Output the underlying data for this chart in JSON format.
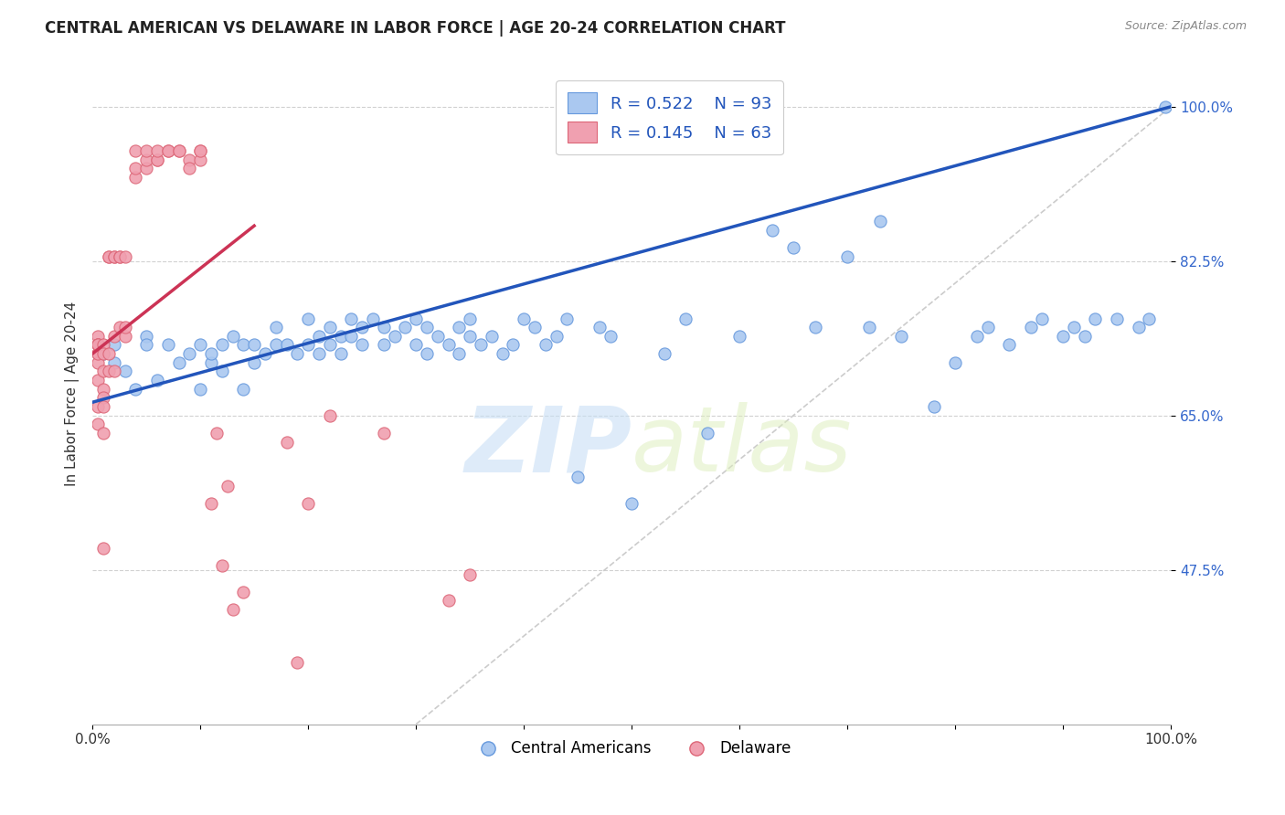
{
  "title": "CENTRAL AMERICAN VS DELAWARE IN LABOR FORCE | AGE 20-24 CORRELATION CHART",
  "source": "Source: ZipAtlas.com",
  "ylabel": "In Labor Force | Age 20-24",
  "ytick_labels": [
    "100.0%",
    "82.5%",
    "65.0%",
    "47.5%"
  ],
  "ytick_values": [
    1.0,
    0.825,
    0.65,
    0.475
  ],
  "xlim": [
    0.0,
    1.0
  ],
  "ylim": [
    0.3,
    1.05
  ],
  "watermark_zip": "ZIP",
  "watermark_atlas": "atlas",
  "legend_blue_R": "R = 0.522",
  "legend_blue_N": "N = 93",
  "legend_pink_R": "R = 0.145",
  "legend_pink_N": "N = 63",
  "blue_color": "#aac8f0",
  "blue_edge_color": "#6699dd",
  "pink_color": "#f0a0b0",
  "pink_edge_color": "#dd6677",
  "blue_line_color": "#2255bb",
  "pink_line_color": "#cc3355",
  "diag_line_color": "#cccccc",
  "legend_label_blue": "Central Americans",
  "legend_label_pink": "Delaware",
  "blue_scatter_x": [
    0.01,
    0.02,
    0.02,
    0.03,
    0.04,
    0.05,
    0.05,
    0.06,
    0.07,
    0.08,
    0.09,
    0.1,
    0.1,
    0.11,
    0.11,
    0.12,
    0.12,
    0.13,
    0.14,
    0.14,
    0.15,
    0.15,
    0.16,
    0.17,
    0.17,
    0.18,
    0.19,
    0.2,
    0.2,
    0.21,
    0.21,
    0.22,
    0.22,
    0.23,
    0.23,
    0.24,
    0.24,
    0.25,
    0.25,
    0.26,
    0.27,
    0.27,
    0.28,
    0.29,
    0.3,
    0.3,
    0.31,
    0.31,
    0.32,
    0.33,
    0.34,
    0.34,
    0.35,
    0.35,
    0.36,
    0.37,
    0.38,
    0.39,
    0.4,
    0.41,
    0.42,
    0.43,
    0.44,
    0.45,
    0.47,
    0.48,
    0.5,
    0.53,
    0.55,
    0.57,
    0.6,
    0.63,
    0.65,
    0.67,
    0.7,
    0.72,
    0.73,
    0.75,
    0.78,
    0.8,
    0.82,
    0.83,
    0.85,
    0.87,
    0.88,
    0.9,
    0.91,
    0.92,
    0.93,
    0.95,
    0.97,
    0.98,
    0.995
  ],
  "blue_scatter_y": [
    0.72,
    0.73,
    0.71,
    0.7,
    0.68,
    0.74,
    0.73,
    0.69,
    0.73,
    0.71,
    0.72,
    0.73,
    0.68,
    0.71,
    0.72,
    0.73,
    0.7,
    0.74,
    0.73,
    0.68,
    0.73,
    0.71,
    0.72,
    0.75,
    0.73,
    0.73,
    0.72,
    0.73,
    0.76,
    0.74,
    0.72,
    0.75,
    0.73,
    0.74,
    0.72,
    0.76,
    0.74,
    0.75,
    0.73,
    0.76,
    0.75,
    0.73,
    0.74,
    0.75,
    0.73,
    0.76,
    0.75,
    0.72,
    0.74,
    0.73,
    0.72,
    0.75,
    0.74,
    0.76,
    0.73,
    0.74,
    0.72,
    0.73,
    0.76,
    0.75,
    0.73,
    0.74,
    0.76,
    0.58,
    0.75,
    0.74,
    0.55,
    0.72,
    0.76,
    0.63,
    0.74,
    0.86,
    0.84,
    0.75,
    0.83,
    0.75,
    0.87,
    0.74,
    0.66,
    0.71,
    0.74,
    0.75,
    0.73,
    0.75,
    0.76,
    0.74,
    0.75,
    0.74,
    0.76,
    0.76,
    0.75,
    0.76,
    1.0
  ],
  "pink_scatter_x": [
    0.005,
    0.005,
    0.005,
    0.005,
    0.005,
    0.005,
    0.005,
    0.005,
    0.005,
    0.005,
    0.01,
    0.01,
    0.01,
    0.01,
    0.01,
    0.01,
    0.01,
    0.01,
    0.015,
    0.015,
    0.015,
    0.015,
    0.02,
    0.02,
    0.02,
    0.02,
    0.025,
    0.025,
    0.025,
    0.03,
    0.03,
    0.03,
    0.04,
    0.04,
    0.04,
    0.05,
    0.05,
    0.05,
    0.06,
    0.06,
    0.06,
    0.07,
    0.07,
    0.08,
    0.08,
    0.09,
    0.09,
    0.1,
    0.1,
    0.1,
    0.11,
    0.115,
    0.12,
    0.125,
    0.13,
    0.14,
    0.18,
    0.19,
    0.2,
    0.22,
    0.27,
    0.33,
    0.35
  ],
  "pink_scatter_y": [
    0.74,
    0.73,
    0.72,
    0.73,
    0.71,
    0.69,
    0.72,
    0.66,
    0.64,
    0.73,
    0.73,
    0.72,
    0.7,
    0.68,
    0.67,
    0.66,
    0.5,
    0.63,
    0.83,
    0.83,
    0.72,
    0.7,
    0.83,
    0.83,
    0.7,
    0.74,
    0.75,
    0.83,
    0.83,
    0.74,
    0.75,
    0.83,
    0.92,
    0.93,
    0.95,
    0.93,
    0.94,
    0.95,
    0.94,
    0.94,
    0.95,
    0.95,
    0.95,
    0.95,
    0.95,
    0.94,
    0.93,
    0.95,
    0.94,
    0.95,
    0.55,
    0.63,
    0.48,
    0.57,
    0.43,
    0.45,
    0.62,
    0.37,
    0.55,
    0.65,
    0.63,
    0.44,
    0.47
  ],
  "blue_line_x": [
    0.0,
    1.0
  ],
  "blue_line_y": [
    0.665,
    1.0
  ],
  "pink_line_x": [
    0.0,
    0.15
  ],
  "pink_line_y": [
    0.72,
    0.865
  ],
  "diag_line_x": [
    0.3,
    1.0
  ],
  "diag_line_y": [
    0.3,
    1.0
  ]
}
